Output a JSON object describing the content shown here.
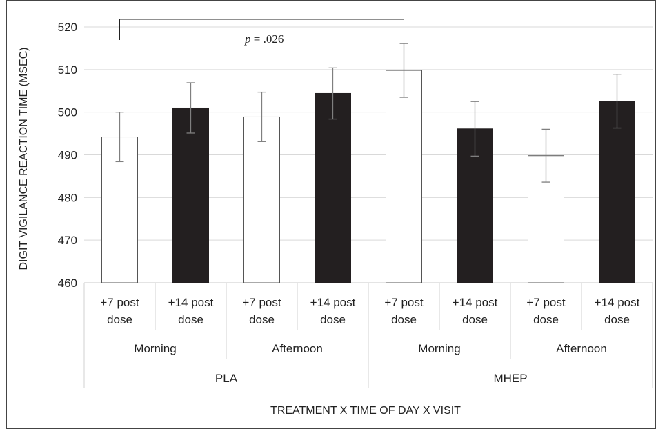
{
  "chart_data": {
    "type": "bar",
    "xlabel": "TREATMENT X TIME OF DAY X VISIT",
    "ylabel": "DIGIT VIGILANCE REACTION TIME (MSEC)",
    "ylim": [
      460,
      520
    ],
    "yticks": [
      "460",
      "470",
      "480",
      "490",
      "500",
      "510",
      "520"
    ],
    "grid": true,
    "categories": [
      [
        "+7 post",
        "dose"
      ],
      [
        "+14 post",
        "dose"
      ],
      [
        "+7 post",
        "dose"
      ],
      [
        "+14 post",
        "dose"
      ],
      [
        "+7 post",
        "dose"
      ],
      [
        "+14 post",
        "dose"
      ],
      [
        "+7 post",
        "dose"
      ],
      [
        "+14 post",
        "dose"
      ]
    ],
    "time_groups": [
      "Morning",
      "Afternoon",
      "Morning",
      "Afternoon"
    ],
    "treatment_groups": [
      "PLA",
      "MHEP"
    ],
    "values": [
      494.2,
      501.0,
      498.9,
      504.4,
      509.8,
      496.1,
      489.8,
      502.6
    ],
    "errors": [
      5.8,
      5.9,
      5.8,
      6.0,
      6.3,
      6.4,
      6.2,
      6.3
    ],
    "colors": {
      "post7": "#ffffff",
      "post14": "#231f20",
      "outline": "#555555",
      "grid": "#d9d9d9",
      "errorbar": "#7f7f7f"
    },
    "annotation": {
      "text_italic": "p",
      "text_rest": " = .026",
      "from_bar": 0,
      "to_bar": 4
    }
  }
}
